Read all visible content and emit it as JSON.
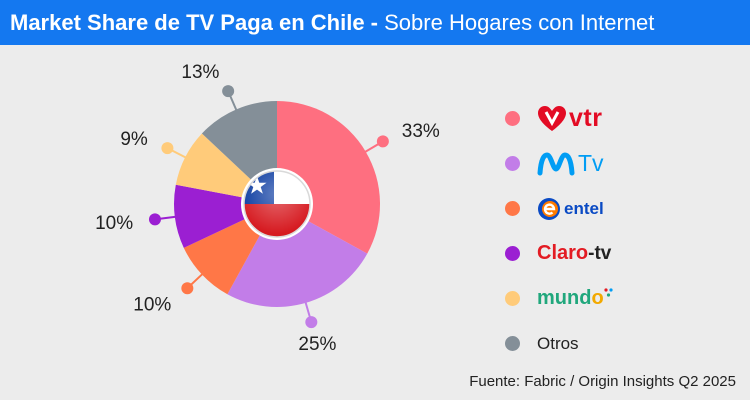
{
  "header": {
    "title_bold": "Market Share de TV Paga en Chile - ",
    "title_light": "Sobre Hogares con Internet"
  },
  "chart_data": {
    "type": "pie",
    "style": "donut",
    "categories": [
      "vtr",
      "Movistar TV",
      "entel",
      "Claro-tv",
      "mundo",
      "Otros"
    ],
    "values": [
      33,
      25,
      10,
      10,
      9,
      13
    ],
    "labels": [
      "33%",
      "25%",
      "10%",
      "10%",
      "9%",
      "13%"
    ],
    "colors": [
      "#fe6f80",
      "#c27de8",
      "#ff7747",
      "#9b1fd2",
      "#ffcb7a",
      "#848f98"
    ],
    "legend_position": "right",
    "center_icon": "chile-flag-icon"
  },
  "legend": {
    "items": [
      {
        "key": "vtr",
        "text": "vtr",
        "icon": "vtr-heart-logo",
        "color": "#fe6f80"
      },
      {
        "key": "movistar",
        "text": "Tv",
        "icon": "movistar-m-logo",
        "color": "#c27de8"
      },
      {
        "key": "entel",
        "text": "entel",
        "icon": "entel-e-logo",
        "color": "#ff7747"
      },
      {
        "key": "claro",
        "text_a": "Claro",
        "text_b": "-tv",
        "icon": "claro-sun-logo",
        "color": "#9b1fd2"
      },
      {
        "key": "mundo",
        "text_a": "mund",
        "text_b": "o",
        "icon": "mundo-logo",
        "color": "#ffcb7a"
      },
      {
        "key": "otros",
        "text": "Otros",
        "color": "#848f98"
      }
    ]
  },
  "source": "Fuente: Fabric / Origin Insights Q2 2025"
}
